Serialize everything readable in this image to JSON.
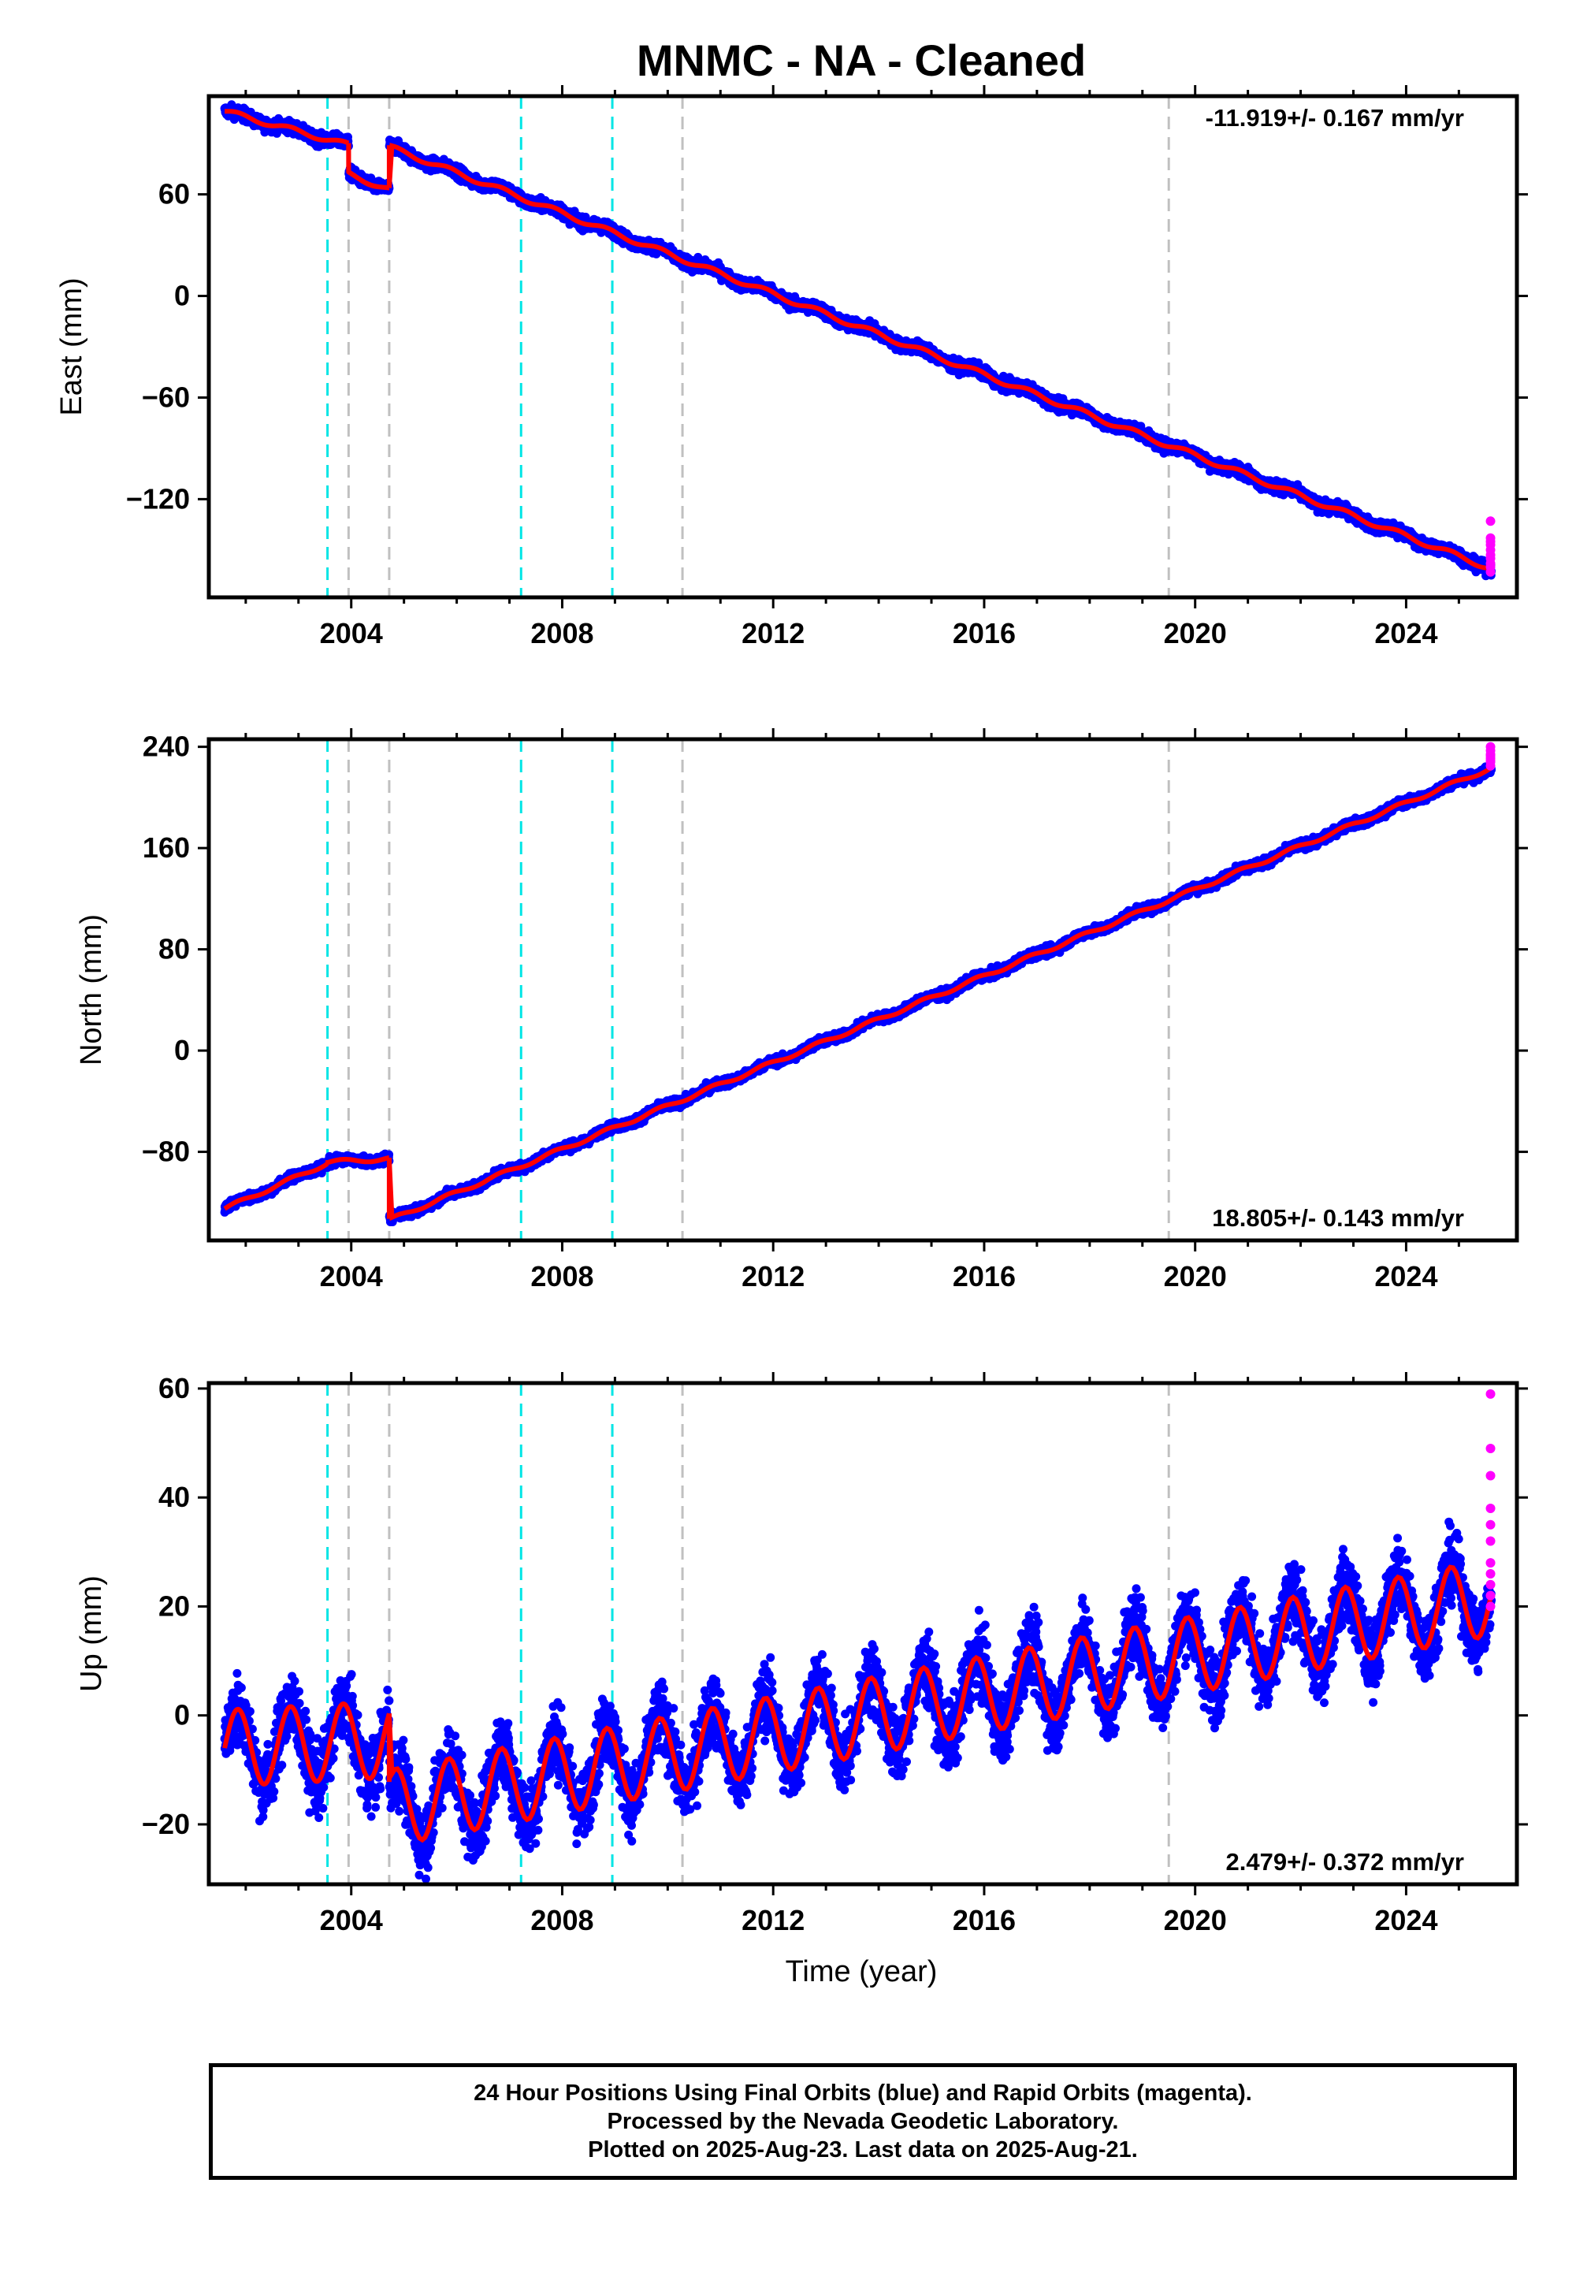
{
  "title": "MNMC  - NA - Cleaned",
  "colors": {
    "final": "#0000ff",
    "rapid": "#ff00ff",
    "model": "#ff0000",
    "cyan_lines": "#00e5e5",
    "gray_lines": "#c0c0c0"
  },
  "event_lines": {
    "cyan": [
      2003.55,
      2008.95,
      2007.22
    ],
    "gray": [
      2003.95,
      2004.72,
      2010.28,
      2019.5
    ]
  },
  "xlabel": "Time (year)",
  "chart_data": [
    {
      "type": "scatter",
      "name": "east",
      "ylabel": "East (mm)",
      "xlim": [
        2001.3,
        2026.1
      ],
      "ylim": [
        -178,
        118
      ],
      "xticks": [
        2004,
        2008,
        2012,
        2016,
        2020,
        2024
      ],
      "xtick_labels": [
        "2004",
        "2008",
        "2012",
        "2016",
        "2020",
        "2024"
      ],
      "yticks": [
        -120,
        -60,
        0,
        60
      ],
      "ytick_labels": [
        "−120",
        "−60",
        "0",
        "60"
      ],
      "rate_text": "-11.919+/- 0.167 mm/yr",
      "rate_position": "top-right",
      "segments": [
        {
          "start": 2001.6,
          "end": 2003.95,
          "y0": 109,
          "rate": -8.5,
          "amp": 1.5,
          "noise": 2.5
        },
        {
          "start": 2003.95,
          "end": 2004.72,
          "y0": 72,
          "rate": -12,
          "amp": 1.5,
          "noise": 2.5
        },
        {
          "start": 2004.72,
          "end": 2025.62,
          "y0": 88,
          "rate": -11.92,
          "amp": 1.5,
          "noise": 2.5
        }
      ],
      "rapid": {
        "start": 2025.45,
        "end": 2025.62,
        "values": [
          -133,
          -143,
          -147,
          -150,
          -153,
          -158,
          -163,
          -145,
          -155,
          -160
        ]
      }
    },
    {
      "type": "scatter",
      "name": "north",
      "ylabel": "North (mm)",
      "xlim": [
        2001.3,
        2026.1
      ],
      "ylim": [
        -150,
        246
      ],
      "xticks": [
        2004,
        2008,
        2012,
        2016,
        2020,
        2024
      ],
      "xtick_labels": [
        "2004",
        "2008",
        "2012",
        "2016",
        "2020",
        "2024"
      ],
      "yticks": [
        -80,
        0,
        80,
        160,
        240
      ],
      "ytick_labels": [
        "−80",
        "0",
        "80",
        "160",
        "240"
      ],
      "rate_text": "18.805+/- 0.143 mm/yr",
      "rate_position": "bottom-right",
      "segments": [
        {
          "start": 2001.6,
          "end": 2003.55,
          "y0": -125,
          "rate": 18.5,
          "amp": 1.5,
          "noise": 2.5
        },
        {
          "start": 2003.55,
          "end": 2004.72,
          "y0": -88,
          "rate": 2,
          "amp": 1.5,
          "noise": 2.5
        },
        {
          "start": 2004.72,
          "end": 2025.62,
          "y0": -134,
          "rate": 17.1,
          "amp": 1.5,
          "noise": 2.5
        }
      ],
      "rapid": {
        "start": 2025.45,
        "end": 2025.62,
        "values": [
          225,
          228,
          231,
          234,
          237,
          240,
          229,
          233
        ]
      }
    },
    {
      "type": "scatter",
      "name": "up",
      "ylabel": "Up (mm)",
      "xlim": [
        2001.3,
        2026.1
      ],
      "ylim": [
        -31,
        61
      ],
      "xticks": [
        2004,
        2008,
        2012,
        2016,
        2020,
        2024
      ],
      "xtick_labels": [
        "2004",
        "2008",
        "2012",
        "2016",
        "2020",
        "2024"
      ],
      "yticks": [
        -20,
        0,
        20,
        40,
        60
      ],
      "ytick_labels": [
        "−20",
        "0",
        "20",
        "40",
        "60"
      ],
      "rate_text": "2.479+/- 0.372 mm/yr",
      "rate_position": "bottom-right",
      "segments": [
        {
          "start": 2001.6,
          "end": 2004.72,
          "y0": -6,
          "rate": 0.5,
          "amp": 7,
          "noise": 4.5
        },
        {
          "start": 2004.72,
          "end": 2025.62,
          "y0": -17,
          "rate": 1.85,
          "amp": 7,
          "noise": 4.5
        }
      ],
      "rapid": {
        "start": 2025.45,
        "end": 2025.62,
        "values": [
          59,
          49,
          44,
          38,
          35,
          32,
          28,
          26,
          24,
          22,
          20
        ]
      }
    }
  ],
  "caption": [
    "24 Hour Positions Using Final Orbits (blue) and Rapid Orbits (magenta).",
    "Processed by the Nevada Geodetic Laboratory.",
    "Plotted on 2025-Aug-23. Last data on 2025-Aug-21."
  ]
}
